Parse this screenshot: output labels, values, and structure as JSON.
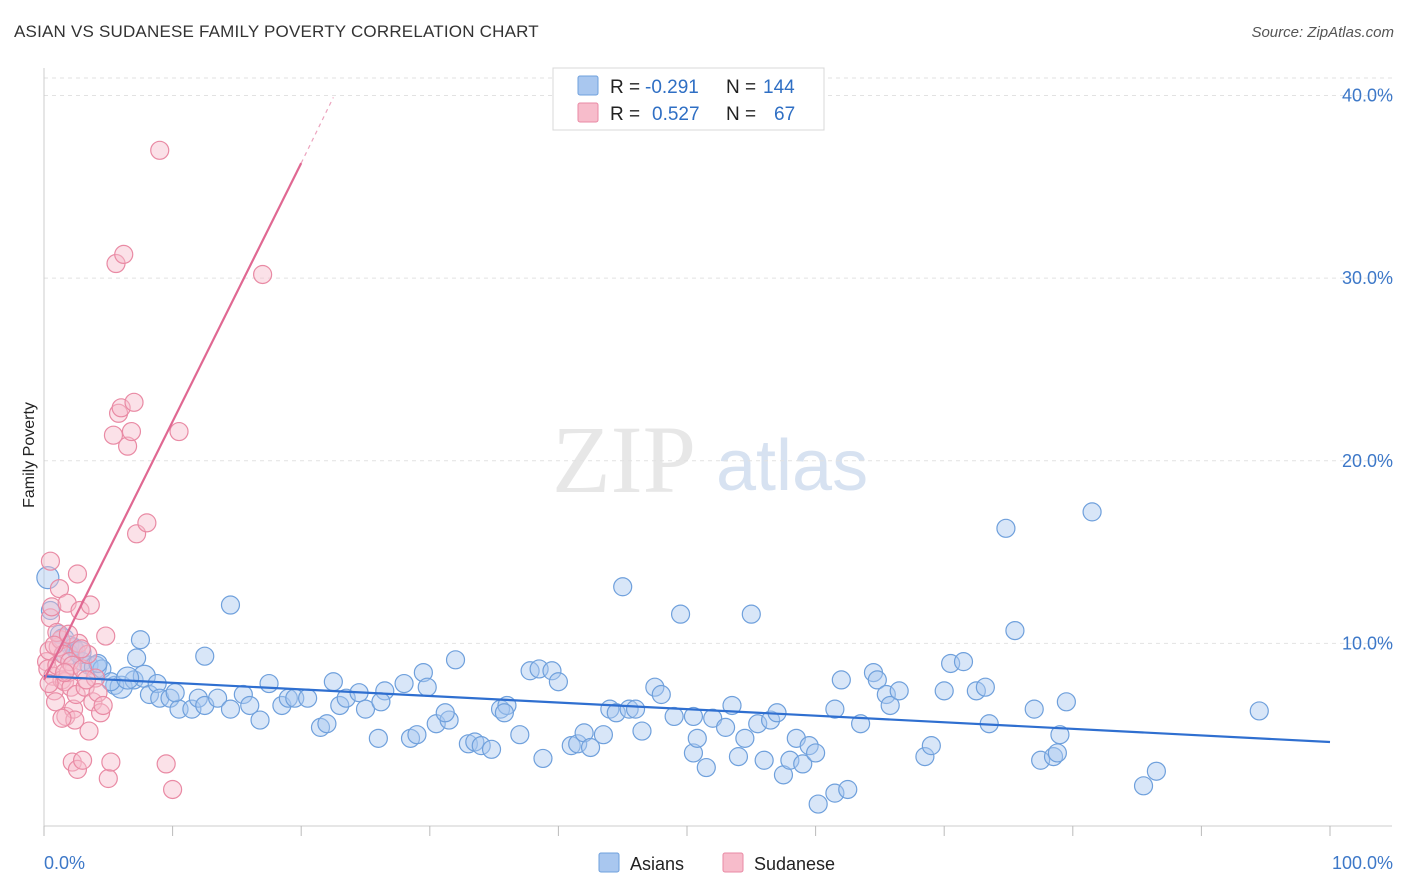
{
  "header": {
    "title": "ASIAN VS SUDANESE FAMILY POVERTY CORRELATION CHART",
    "source": "Source: ZipAtlas.com"
  },
  "watermark": {
    "zip": "ZIP",
    "atlas": "atlas"
  },
  "legend_top": {
    "rows": [
      {
        "r_label": "R =",
        "r_value": "-0.291",
        "n_label": "N =",
        "n_value": "144",
        "color": "#a9c7ef",
        "stroke": "#6fa0dc"
      },
      {
        "r_label": "R =",
        "r_value": "0.527",
        "n_label": "N =",
        "n_value": "67",
        "color": "#f7bccb",
        "stroke": "#e98aa4"
      }
    ]
  },
  "legend_bottom": {
    "items": [
      {
        "label": "Asians",
        "color": "#a9c7ef",
        "stroke": "#6fa0dc"
      },
      {
        "label": "Sudanese",
        "color": "#f7bccb",
        "stroke": "#e98aa4"
      }
    ]
  },
  "chart_data": {
    "type": "scatter",
    "title": "ASIAN VS SUDANESE FAMILY POVERTY CORRELATION CHART",
    "xlabel": "",
    "ylabel": "Family Poverty",
    "xlim": [
      0,
      100
    ],
    "ylim": [
      0,
      42
    ],
    "x_tick_labels": [
      "0.0%",
      "100.0%"
    ],
    "y_ticks": [
      10,
      20,
      30,
      40
    ],
    "y_tick_labels": [
      "10.0%",
      "20.0%",
      "30.0%",
      "40.0%"
    ],
    "grid": true,
    "legend_position": "top-center",
    "colors": {
      "asians": "#6fa0dc",
      "sudanese": "#e98aa4",
      "asians_line": "#2f6fd0",
      "sudanese_line": "#e06892"
    },
    "series": [
      {
        "name": "Asians",
        "r": -0.291,
        "n": 144,
        "trend": {
          "x": [
            0,
            100
          ],
          "y": [
            8.2,
            4.6
          ]
        },
        "points": [
          [
            0.3,
            13.6
          ],
          [
            0.5,
            11.8
          ],
          [
            1.2,
            10.5
          ],
          [
            1.5,
            10.2
          ],
          [
            2.0,
            9.9
          ],
          [
            2.5,
            9.6
          ],
          [
            1.8,
            9.4
          ],
          [
            3.0,
            9.0
          ],
          [
            3.5,
            8.8
          ],
          [
            4.0,
            8.7
          ],
          [
            4.5,
            8.6
          ],
          [
            5.5,
            7.7
          ],
          [
            6.0,
            7.6
          ],
          [
            7.0,
            8.0
          ],
          [
            7.2,
            9.2
          ],
          [
            7.8,
            8.2
          ],
          [
            7.5,
            10.2
          ],
          [
            8.2,
            7.2
          ],
          [
            8.8,
            7.8
          ],
          [
            9.0,
            7.0
          ],
          [
            9.8,
            7.0
          ],
          [
            10.5,
            6.4
          ],
          [
            11.5,
            6.4
          ],
          [
            12.0,
            7.0
          ],
          [
            12.5,
            6.6
          ],
          [
            12.5,
            9.3
          ],
          [
            13.5,
            7.0
          ],
          [
            14.5,
            6.4
          ],
          [
            14.5,
            12.1
          ],
          [
            15.5,
            7.2
          ],
          [
            16.0,
            6.6
          ],
          [
            16.8,
            5.8
          ],
          [
            17.5,
            7.8
          ],
          [
            18.5,
            6.6
          ],
          [
            19.0,
            7.0
          ],
          [
            19.5,
            7.0
          ],
          [
            20.5,
            7.0
          ],
          [
            21.5,
            5.4
          ],
          [
            22.0,
            5.6
          ],
          [
            22.5,
            7.9
          ],
          [
            23.0,
            6.6
          ],
          [
            23.5,
            7.0
          ],
          [
            24.5,
            7.3
          ],
          [
            25.0,
            6.4
          ],
          [
            26.0,
            4.8
          ],
          [
            26.5,
            7.4
          ],
          [
            26.2,
            6.8
          ],
          [
            28.0,
            7.8
          ],
          [
            28.5,
            4.8
          ],
          [
            29.0,
            5.0
          ],
          [
            29.5,
            8.4
          ],
          [
            29.8,
            7.6
          ],
          [
            30.5,
            5.6
          ],
          [
            31.5,
            5.8
          ],
          [
            32.0,
            9.1
          ],
          [
            31.2,
            6.2
          ],
          [
            33.0,
            4.5
          ],
          [
            33.5,
            4.6
          ],
          [
            34.0,
            4.4
          ],
          [
            34.8,
            4.2
          ],
          [
            35.5,
            6.4
          ],
          [
            36.0,
            6.6
          ],
          [
            35.8,
            6.2
          ],
          [
            37.0,
            5.0
          ],
          [
            37.8,
            8.5
          ],
          [
            38.5,
            8.6
          ],
          [
            38.8,
            3.7
          ],
          [
            39.5,
            8.5
          ],
          [
            40.0,
            7.9
          ],
          [
            41.0,
            4.4
          ],
          [
            41.5,
            4.5
          ],
          [
            42.0,
            5.1
          ],
          [
            42.5,
            4.3
          ],
          [
            43.5,
            5.0
          ],
          [
            44.0,
            6.4
          ],
          [
            44.5,
            6.2
          ],
          [
            45.0,
            13.1
          ],
          [
            45.5,
            6.4
          ],
          [
            46.0,
            6.4
          ],
          [
            46.5,
            5.2
          ],
          [
            47.5,
            7.6
          ],
          [
            48.0,
            7.2
          ],
          [
            49.0,
            6.0
          ],
          [
            49.5,
            11.6
          ],
          [
            50.5,
            6.0
          ],
          [
            50.5,
            4.0
          ],
          [
            50.8,
            4.8
          ],
          [
            51.5,
            3.2
          ],
          [
            52.0,
            5.9
          ],
          [
            53.0,
            5.4
          ],
          [
            53.5,
            6.6
          ],
          [
            54.0,
            3.8
          ],
          [
            54.5,
            4.8
          ],
          [
            55.0,
            11.6
          ],
          [
            55.5,
            5.6
          ],
          [
            56.0,
            3.6
          ],
          [
            56.5,
            5.8
          ],
          [
            57.0,
            6.2
          ],
          [
            57.5,
            2.8
          ],
          [
            58.0,
            3.6
          ],
          [
            58.5,
            4.8
          ],
          [
            59.0,
            3.4
          ],
          [
            59.5,
            4.4
          ],
          [
            60.0,
            4.0
          ],
          [
            61.5,
            6.4
          ],
          [
            61.5,
            1.8
          ],
          [
            62.0,
            8.0
          ],
          [
            62.5,
            2.0
          ],
          [
            63.5,
            5.6
          ],
          [
            64.5,
            8.4
          ],
          [
            64.8,
            8.0
          ],
          [
            65.5,
            7.2
          ],
          [
            65.8,
            6.6
          ],
          [
            66.5,
            7.4
          ],
          [
            68.5,
            3.8
          ],
          [
            69.0,
            4.4
          ],
          [
            70.0,
            7.4
          ],
          [
            70.5,
            8.9
          ],
          [
            71.5,
            9.0
          ],
          [
            72.5,
            7.4
          ],
          [
            73.2,
            7.6
          ],
          [
            73.5,
            5.6
          ],
          [
            74.8,
            16.3
          ],
          [
            75.5,
            10.7
          ],
          [
            77.0,
            6.4
          ],
          [
            77.5,
            3.6
          ],
          [
            78.5,
            3.8
          ],
          [
            78.8,
            4.0
          ],
          [
            79.0,
            5.0
          ],
          [
            79.5,
            6.8
          ],
          [
            81.5,
            17.2
          ],
          [
            85.5,
            2.2
          ],
          [
            86.5,
            3.0
          ],
          [
            94.5,
            6.3
          ],
          [
            2.3,
            9.8
          ],
          [
            2.8,
            9.5
          ],
          [
            4.2,
            8.9
          ],
          [
            5.2,
            7.9
          ],
          [
            6.5,
            8.1
          ],
          [
            10.2,
            7.3
          ],
          [
            60.2,
            1.2
          ]
        ]
      },
      {
        "name": "Sudanese",
        "r": 0.527,
        "n": 67,
        "trend": {
          "x": [
            0,
            20,
            22.5
          ],
          "y": [
            8.0,
            36.3,
            39.9
          ]
        },
        "points": [
          [
            0.2,
            9.0
          ],
          [
            0.3,
            8.6
          ],
          [
            0.4,
            9.6
          ],
          [
            0.5,
            11.4
          ],
          [
            0.6,
            12.0
          ],
          [
            0.7,
            8.2
          ],
          [
            0.8,
            7.4
          ],
          [
            0.9,
            6.8
          ],
          [
            1.0,
            8.8
          ],
          [
            1.1,
            9.8
          ],
          [
            1.2,
            13.0
          ],
          [
            1.3,
            10.2
          ],
          [
            1.4,
            8.0
          ],
          [
            1.5,
            9.4
          ],
          [
            1.6,
            7.9
          ],
          [
            1.7,
            6.0
          ],
          [
            1.8,
            12.2
          ],
          [
            1.9,
            8.4
          ],
          [
            2.0,
            9.0
          ],
          [
            2.1,
            7.6
          ],
          [
            2.2,
            8.8
          ],
          [
            2.3,
            6.4
          ],
          [
            2.4,
            5.8
          ],
          [
            2.5,
            7.2
          ],
          [
            2.6,
            13.8
          ],
          [
            2.7,
            10.0
          ],
          [
            2.8,
            11.8
          ],
          [
            3.0,
            8.6
          ],
          [
            3.2,
            7.6
          ],
          [
            3.4,
            9.4
          ],
          [
            3.6,
            12.1
          ],
          [
            3.8,
            6.8
          ],
          [
            4.0,
            8.1
          ],
          [
            4.2,
            7.3
          ],
          [
            4.4,
            6.2
          ],
          [
            4.6,
            6.6
          ],
          [
            4.8,
            10.4
          ],
          [
            5.0,
            2.6
          ],
          [
            5.2,
            3.5
          ],
          [
            5.4,
            21.4
          ],
          [
            5.6,
            30.8
          ],
          [
            5.8,
            22.6
          ],
          [
            6.0,
            22.9
          ],
          [
            6.2,
            31.3
          ],
          [
            6.5,
            20.8
          ],
          [
            6.8,
            21.6
          ],
          [
            7.0,
            23.2
          ],
          [
            7.2,
            16.0
          ],
          [
            8.0,
            16.6
          ],
          [
            9.0,
            37.0
          ],
          [
            9.5,
            3.4
          ],
          [
            10.0,
            2.0
          ],
          [
            10.5,
            21.6
          ],
          [
            17.0,
            30.2
          ],
          [
            0.5,
            14.5
          ],
          [
            1.0,
            10.6
          ],
          [
            1.4,
            5.9
          ],
          [
            2.2,
            3.5
          ],
          [
            2.6,
            3.1
          ],
          [
            3.0,
            3.6
          ],
          [
            3.5,
            5.2
          ],
          [
            0.8,
            9.9
          ],
          [
            1.9,
            10.5
          ],
          [
            2.9,
            9.7
          ],
          [
            0.4,
            7.8
          ],
          [
            1.6,
            8.4
          ],
          [
            3.3,
            8.0
          ]
        ]
      }
    ]
  }
}
